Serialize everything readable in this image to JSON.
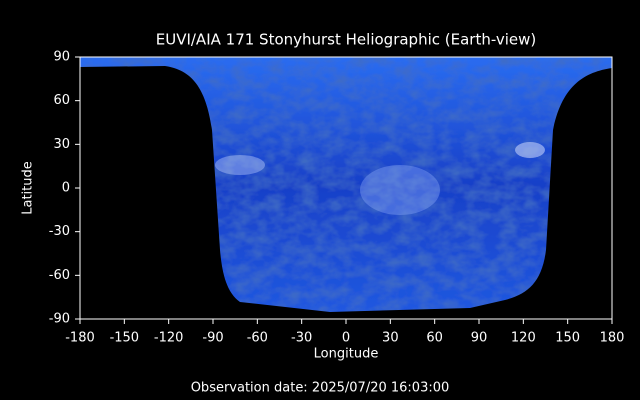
{
  "chart_data": {
    "type": "image",
    "title": "EUVI/AIA 171 Stonyhurst Heliographic (Earth-view)",
    "x_label": "Longitude",
    "y_label": "Latitude",
    "footer": "Observation date: 2025/07/20 16:03:00",
    "xlim": [
      -180,
      180
    ],
    "ylim": [
      -90,
      90
    ],
    "xticks": [
      -180,
      -150,
      -120,
      -90,
      -60,
      -30,
      0,
      30,
      60,
      90,
      120,
      150,
      180
    ],
    "yticks": [
      -90,
      -60,
      -30,
      0,
      30,
      60,
      90
    ]
  }
}
